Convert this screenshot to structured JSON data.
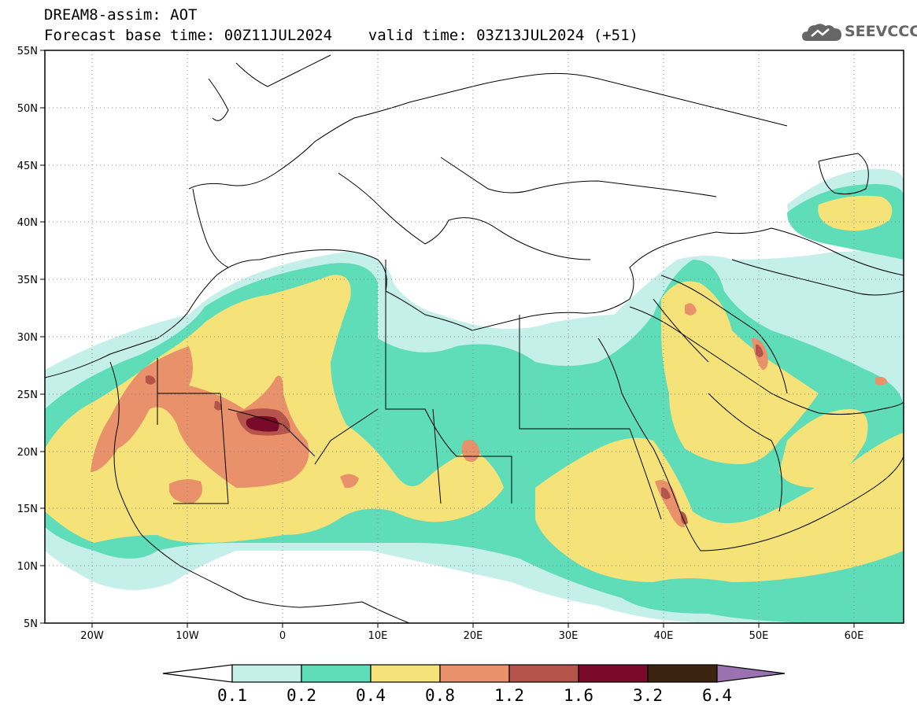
{
  "header": {
    "line1": "DREAM8-assim: AOT",
    "line2": "Forecast base time: 00Z11JUL2024    valid time: 03Z13JUL2024 (+51)"
  },
  "logo": {
    "text": "SEEVCCC",
    "icon": "cloud-icon"
  },
  "map": {
    "lon_range": [
      -25,
      65
    ],
    "lat_range": [
      5,
      55
    ],
    "lat_ticks": [
      "5N",
      "10N",
      "15N",
      "20N",
      "25N",
      "30N",
      "35N",
      "40N",
      "45N",
      "50N",
      "55N"
    ],
    "lon_ticks": [
      "20W",
      "10W",
      "0",
      "10E",
      "20E",
      "30E",
      "40E",
      "50E",
      "60E"
    ],
    "background": "#ffffff",
    "grid": "dotted"
  },
  "colorbar": {
    "levels": [
      "0.1",
      "0.2",
      "0.4",
      "0.8",
      "1.2",
      "1.6",
      "3.2",
      "6.4"
    ],
    "colors": [
      "#c5f0ea",
      "#5fdcb8",
      "#f5e37a",
      "#e8916a",
      "#b5544a",
      "#7a0a2a",
      "#3b2312",
      "#9a72b0"
    ],
    "under_color": "#ffffff",
    "over_color": "#9a72b0"
  }
}
